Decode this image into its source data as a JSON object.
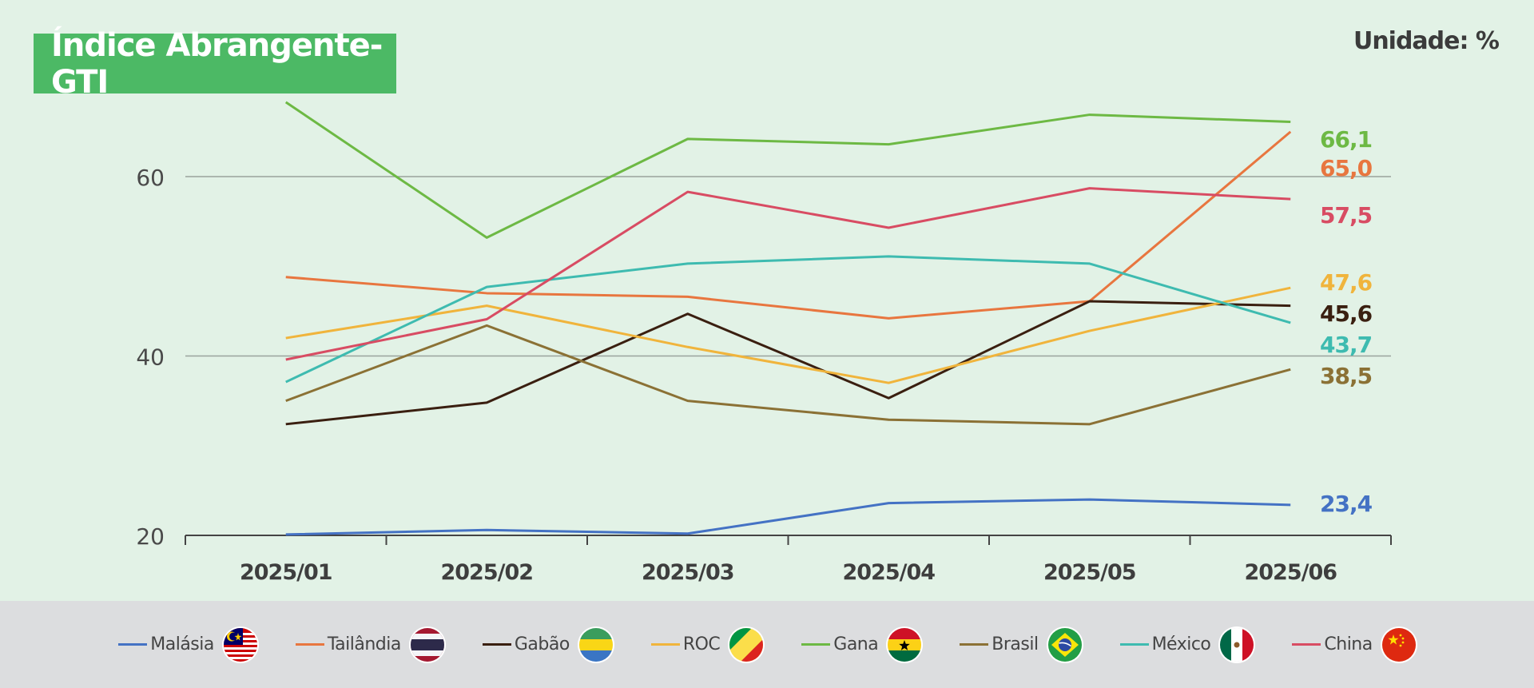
{
  "header": {
    "title": "Índice Abrangente-GTI",
    "unit": "Unidade: %"
  },
  "chart_data": {
    "type": "line",
    "title": "Índice Abrangente-GTI",
    "unit_label": "Unidade: %",
    "categories": [
      "2025/01",
      "2025/02",
      "2025/03",
      "2025/04",
      "2025/05",
      "2025/06"
    ],
    "ylim": [
      20,
      69
    ],
    "yticks": [
      20,
      40,
      60
    ],
    "grid": true,
    "legend_position": "bottom",
    "series": [
      {
        "name": "Malásia",
        "color": "#4472c4",
        "flag": "malaysia-flag-icon",
        "values": [
          20.1,
          20.6,
          20.2,
          23.6,
          24.0,
          23.4
        ],
        "end_label": "23,4"
      },
      {
        "name": "Tailândia",
        "color": "#e8763f",
        "flag": "thailand-flag-icon",
        "values": [
          48.8,
          47.0,
          46.6,
          44.2,
          46.1,
          65.0
        ],
        "end_label": "65,0"
      },
      {
        "name": "Gabão",
        "color": "#3a1f10",
        "flag": "gabon-flag-icon",
        "values": [
          32.4,
          34.8,
          44.7,
          35.3,
          46.1,
          45.6
        ],
        "end_label": "45,6"
      },
      {
        "name": "ROC",
        "color": "#f0b43c",
        "flag": "congo-flag-icon",
        "values": [
          42.0,
          45.6,
          41.0,
          37.0,
          42.8,
          47.6
        ],
        "end_label": "47,6"
      },
      {
        "name": "Gana",
        "color": "#6db944",
        "flag": "ghana-flag-icon",
        "values": [
          68.3,
          53.2,
          64.2,
          63.6,
          66.9,
          66.1
        ],
        "end_label": "66,1"
      },
      {
        "name": "Brasil",
        "color": "#8b7135",
        "flag": "brazil-flag-icon",
        "values": [
          35.0,
          43.4,
          35.0,
          32.9,
          32.4,
          38.5
        ],
        "end_label": "38,5"
      },
      {
        "name": "México",
        "color": "#3ebbb0",
        "flag": "mexico-flag-icon",
        "values": [
          37.1,
          47.7,
          50.3,
          51.1,
          50.3,
          43.7
        ],
        "end_label": "43,7"
      },
      {
        "name": "China",
        "color": "#d84c63",
        "flag": "china-flag-icon",
        "values": [
          39.6,
          44.1,
          58.3,
          54.3,
          58.7,
          57.5
        ],
        "end_label": "57,5"
      }
    ]
  }
}
